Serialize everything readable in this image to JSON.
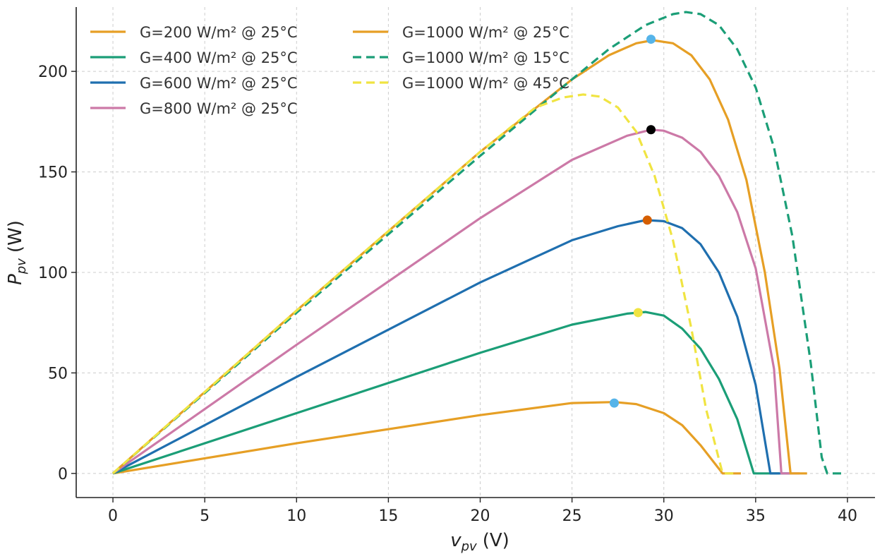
{
  "chart_data": {
    "type": "line",
    "title": "",
    "xlabel_main": "v",
    "xlabel_sub": "pv",
    "xlabel_unit": "(V)",
    "ylabel_main": "P",
    "ylabel_sub": "pv",
    "ylabel_unit": "(W)",
    "xlim": [
      -2,
      41.5
    ],
    "ylim": [
      -12,
      232
    ],
    "xticks": [
      0,
      5,
      10,
      15,
      20,
      25,
      30,
      35,
      40
    ],
    "yticks": [
      0,
      50,
      100,
      150,
      200
    ],
    "grid": true,
    "legend_position": "top-left",
    "series": [
      {
        "name": "G=200 W/m² @ 25°C",
        "color": "#E69F25",
        "dash": "solid",
        "x": [
          0,
          10,
          20,
          25,
          27.3,
          28.5,
          30,
          31,
          32,
          33.2,
          33.5,
          34.2
        ],
        "y": [
          0,
          15,
          29,
          35,
          35.5,
          34.5,
          30,
          24,
          14,
          0,
          0,
          0
        ],
        "mpp": {
          "x": 27.3,
          "y": 35,
          "color": "#56B4E9"
        }
      },
      {
        "name": "G=400 W/m² @ 25°C",
        "color": "#1B9E77",
        "dash": "solid",
        "x": [
          0,
          10,
          20,
          25,
          28,
          29,
          30,
          31,
          32,
          33,
          34,
          34.9,
          36.3
        ],
        "y": [
          0,
          30,
          60,
          74,
          79.5,
          80.3,
          78.5,
          72,
          62,
          47,
          27,
          0,
          0
        ],
        "mpp": {
          "x": 28.6,
          "y": 80,
          "color": "#F0E442"
        }
      },
      {
        "name": "G=600 W/m² @ 25°C",
        "color": "#1F6FAF",
        "dash": "solid",
        "x": [
          0,
          10,
          20,
          25,
          27.5,
          29,
          30,
          31,
          32,
          33,
          34,
          35,
          35.8,
          36.9
        ],
        "y": [
          0,
          48,
          95,
          116,
          123,
          126,
          125.5,
          122,
          114,
          100,
          78,
          44,
          0,
          0
        ],
        "mpp": {
          "x": 29.1,
          "y": 126,
          "color": "#D55E00"
        }
      },
      {
        "name": "G=800 W/m² @ 25°C",
        "color": "#CC79A7",
        "dash": "solid",
        "x": [
          0,
          10,
          20,
          25,
          28,
          29.3,
          30,
          31,
          32,
          33,
          34,
          35,
          36,
          36.4,
          37.4
        ],
        "y": [
          0,
          64,
          127,
          156,
          168,
          171,
          170.5,
          167,
          160,
          148,
          130,
          102,
          52,
          0,
          0
        ],
        "mpp": {
          "x": 29.3,
          "y": 171,
          "color": "#000000"
        }
      },
      {
        "name": "G=1000 W/m² @ 25°C",
        "color": "#E69F25",
        "dash": "solid",
        "x": [
          0,
          10,
          20,
          25,
          27,
          28.5,
          29.4,
          30.5,
          31.5,
          32.5,
          33.5,
          34.5,
          35.5,
          36.3,
          36.9,
          37.8
        ],
        "y": [
          0,
          81,
          160,
          196,
          208,
          214,
          215.5,
          214,
          208,
          196,
          176,
          146,
          100,
          52,
          0,
          0
        ],
        "mpp": {
          "x": 29.3,
          "y": 216,
          "color": "#56B4E9"
        }
      },
      {
        "name": "G=1000 W/m² @ 15°C",
        "color": "#1B9E77",
        "dash": "dashed",
        "x": [
          0,
          10,
          20,
          25,
          27,
          29,
          30.5,
          31.2,
          32,
          33,
          34,
          35,
          36,
          37,
          38,
          38.6,
          38.9,
          39.7
        ],
        "y": [
          0,
          80,
          158,
          196,
          211,
          223,
          228.5,
          229.5,
          228.5,
          223,
          211,
          192,
          162,
          118,
          55,
          8,
          0,
          0
        ],
        "mpp": null
      },
      {
        "name": "G=1000 W/m² @ 45°C",
        "color": "#F0E442",
        "dash": "dashed",
        "x": [
          0,
          10,
          20,
          23,
          24.5,
          25.6,
          26.5,
          27.5,
          28.5,
          29.5,
          30.5,
          31.5,
          32.3,
          33.2,
          34
        ],
        "y": [
          0,
          81,
          160,
          182,
          187,
          188.5,
          187.5,
          182,
          170,
          148,
          116,
          72,
          32,
          0,
          0
        ],
        "mpp": null
      }
    ]
  }
}
